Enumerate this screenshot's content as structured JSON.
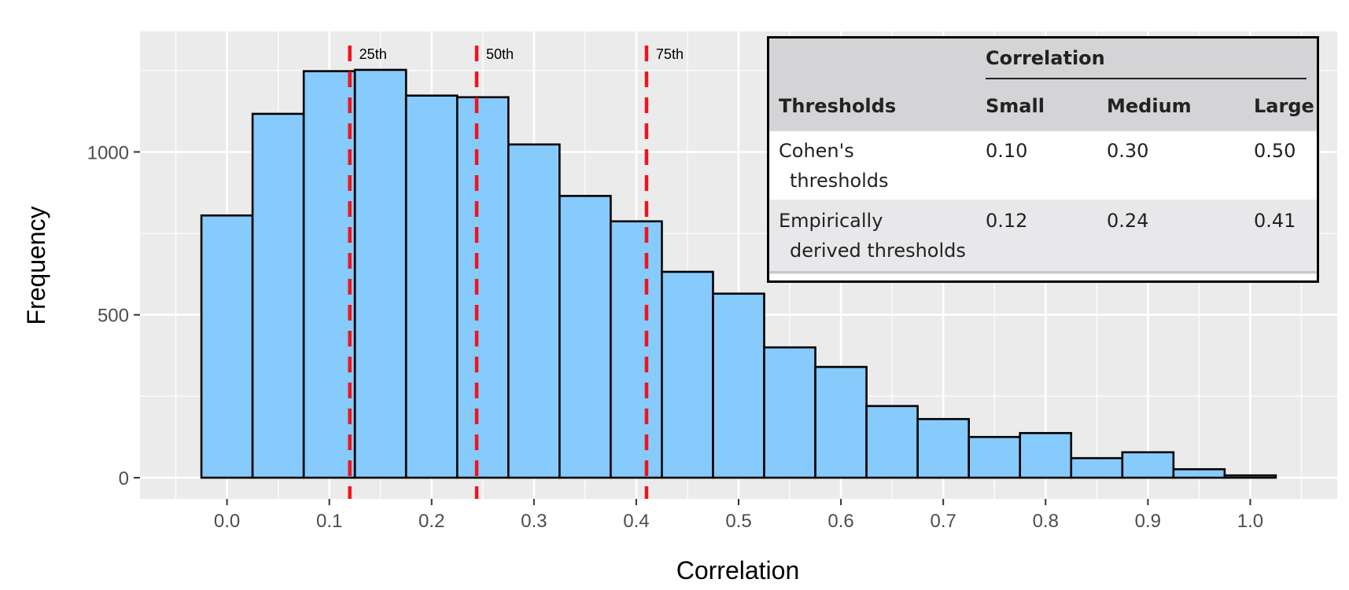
{
  "chart_data": {
    "type": "bar",
    "xlabel": "Correlation",
    "ylabel": "Frequency",
    "xlim": [
      -0.085,
      1.085
    ],
    "ylim": [
      -65,
      1370
    ],
    "x_ticks": [
      "0.0",
      "0.1",
      "0.2",
      "0.3",
      "0.4",
      "0.5",
      "0.6",
      "0.7",
      "0.8",
      "0.9",
      "1.0"
    ],
    "y_ticks": [
      "0",
      "500",
      "1000"
    ],
    "bin_width": 0.05,
    "bin_centers": [
      0.0,
      0.05,
      0.1,
      0.15,
      0.2,
      0.25,
      0.3,
      0.35,
      0.4,
      0.45,
      0.5,
      0.55,
      0.6,
      0.65,
      0.7,
      0.75,
      0.8,
      0.85,
      0.9,
      0.95,
      1.0
    ],
    "values": [
      805,
      1117,
      1248,
      1252,
      1173,
      1168,
      1023,
      865,
      787,
      632,
      565,
      400,
      340,
      220,
      180,
      125,
      137,
      60,
      78,
      26,
      7
    ],
    "bar_color": "#87cafc",
    "bar_edge_color": "#000000",
    "panel_color": "#ebebeb",
    "grid": true,
    "percentile_lines": [
      {
        "label": "25th",
        "x": 0.12
      },
      {
        "label": "50th",
        "x": 0.244
      },
      {
        "label": "75th",
        "x": 0.41
      }
    ],
    "percentile_color": "#f0141e"
  },
  "table": {
    "group_header": "Correlation",
    "columns": [
      "Thresholds",
      "Small",
      "Medium",
      "Large"
    ],
    "rows": [
      {
        "label_line1": "Cohen's",
        "label_line2": "thresholds",
        "small": "0.10",
        "medium": "0.30",
        "large": "0.50"
      },
      {
        "label_line1": "Empirically",
        "label_line2": "derived thresholds",
        "small": "0.12",
        "medium": "0.24",
        "large": "0.41"
      }
    ],
    "placement": "top-right"
  }
}
